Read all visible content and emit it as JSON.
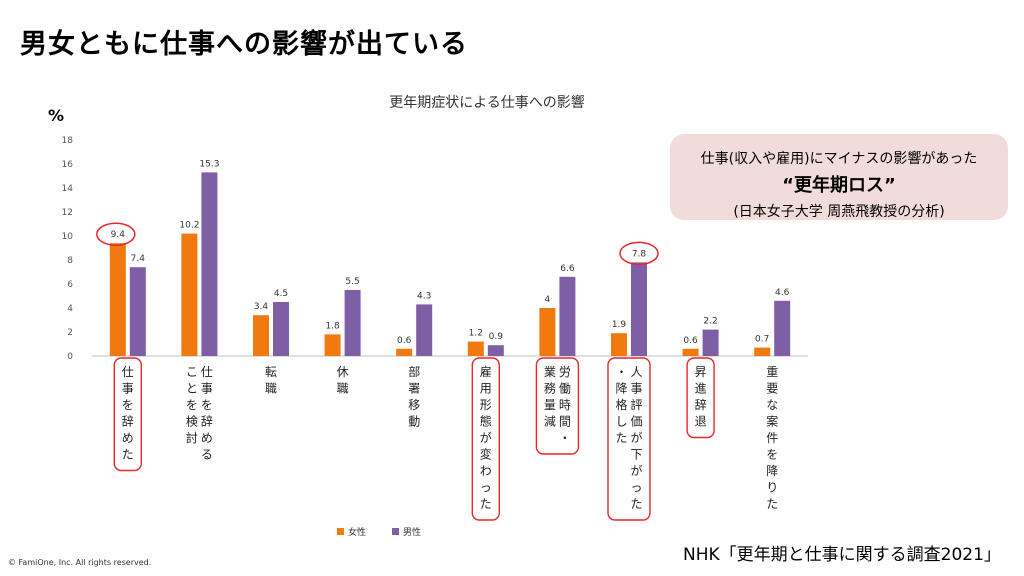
{
  "slide": {
    "title": "男女ともに仕事への影響が出ている",
    "callout_line1": "仕事(収入や雇用)にマイナスの影響があった",
    "callout_line2": "“更年期ロス”",
    "callout_line3": "(日本女子大学 周燕飛教授の分析)",
    "source": "NHK「更年期と仕事に関する調査2021」",
    "copyright": "© FamiOne, Inc. All rights reserved."
  },
  "colors": {
    "female": "#f07a10",
    "male": "#7e5fa5",
    "highlight": "#e8262b",
    "axis": "#bfbfbf"
  },
  "chart_data": {
    "type": "bar",
    "title": "更年期症状による仕事への影響",
    "ylabel": "%",
    "ylim": [
      0,
      18
    ],
    "yticks": [
      "0",
      "2",
      "4",
      "6",
      "8",
      "10",
      "12",
      "14",
      "16",
      "18"
    ],
    "categories": [
      [
        "仕事を辞めた"
      ],
      [
        "仕事を辞める",
        "ことを検討"
      ],
      [
        "転職"
      ],
      [
        "休職"
      ],
      [
        "部署移動"
      ],
      [
        "雇用形態が変わった"
      ],
      [
        "労働時間・",
        "業務量減"
      ],
      [
        "人事評価が下がった",
        "・降格した"
      ],
      [
        "昇進辞退"
      ],
      [
        "重要な案件を降りた"
      ]
    ],
    "series": [
      {
        "name": "女性",
        "values": [
          9.4,
          10.2,
          3.4,
          1.8,
          0.6,
          1.2,
          4,
          1.9,
          0.6,
          0.7
        ],
        "labels": [
          "9.4",
          "10.2",
          "3.4",
          "1.8",
          "0.6",
          "1.2",
          "4",
          "1.9",
          "0.6",
          "0.7"
        ]
      },
      {
        "name": "男性",
        "values": [
          7.4,
          15.3,
          4.5,
          5.5,
          4.3,
          0.9,
          6.6,
          7.8,
          2.2,
          4.6
        ],
        "labels": [
          "7.4",
          "15.3",
          "4.5",
          "5.5",
          "4.3",
          "0.9",
          "6.6",
          "7.8",
          "2.2",
          "4.6"
        ]
      }
    ],
    "highlighted_categories": [
      0,
      5,
      6,
      7,
      8
    ],
    "circled_values": [
      {
        "series": 0,
        "category": 0
      },
      {
        "series": 1,
        "category": 7
      }
    ],
    "legend": "bottom",
    "grid": false
  }
}
